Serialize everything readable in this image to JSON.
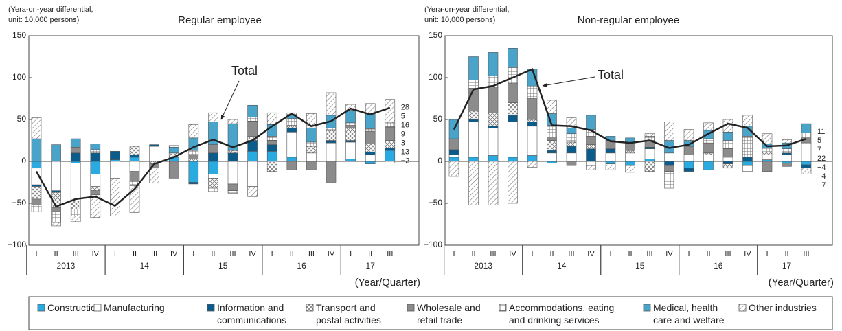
{
  "chart_data": [
    {
      "type": "bar",
      "stacked": true,
      "title": "Regular employee",
      "y_label": "(Yera-on-year differential,\nunit: 10,000 persons)",
      "x_label": "(Year/Quarter)",
      "categories": [
        "I",
        "II",
        "III",
        "IV",
        "I",
        "II",
        "III",
        "IV",
        "I",
        "II",
        "III",
        "IV",
        "I",
        "II",
        "III",
        "IV",
        "I",
        "II",
        "III"
      ],
      "years": [
        "2013",
        "14",
        "15",
        "16",
        "17"
      ],
      "ylim": [
        -100,
        150
      ],
      "yticks": [
        {
          "value": -100,
          "label": "−100"
        },
        {
          "value": -50,
          "label": "−50"
        },
        0,
        50,
        100,
        150
      ],
      "series": [
        {
          "name": "Construction",
          "color": "#29abe2",
          "values": [
            -8,
            0,
            -2,
            -15,
            2,
            5,
            0,
            5,
            -25,
            -15,
            0,
            12,
            12,
            5,
            0,
            0,
            3,
            -3,
            13
          ]
        },
        {
          "name": "Manufacturing",
          "color": "#ffffff",
          "values": [
            -20,
            -35,
            -45,
            -15,
            -20,
            -12,
            18,
            0,
            0,
            -5,
            -27,
            -30,
            0,
            30,
            10,
            22,
            20,
            8,
            -2
          ]
        },
        {
          "name": "Information and\ncommunications",
          "color": "#0b5c8a",
          "values": [
            -2,
            -2,
            10,
            10,
            10,
            3,
            2,
            0,
            -2,
            10,
            10,
            13,
            8,
            5,
            0,
            3,
            2,
            3,
            3
          ]
        },
        {
          "name": "Transport and\npostal activities",
          "color": "#ffffff",
          "pattern": "cross",
          "values": [
            -15,
            -18,
            -10,
            -5,
            0,
            10,
            -3,
            5,
            3,
            -12,
            3,
            5,
            -12,
            3,
            8,
            12,
            15,
            10,
            9
          ]
        },
        {
          "name": "Wholesale and\nretail trade",
          "color": "#8c8c8c",
          "values": [
            -7,
            -5,
            7,
            -5,
            0,
            -12,
            -5,
            -20,
            5,
            10,
            -8,
            18,
            5,
            -10,
            -10,
            -25,
            3,
            15,
            16
          ]
        },
        {
          "name": "Accommodations, eating\nand drinking services",
          "color": "#ffffff",
          "pattern": "grid",
          "values": [
            -8,
            -13,
            -8,
            4,
            0,
            -5,
            0,
            0,
            5,
            -4,
            -3,
            5,
            5,
            8,
            5,
            3,
            3,
            3,
            5
          ]
        },
        {
          "name": "Medical, health\ncare and welfare",
          "color": "#4aa3c9",
          "values": [
            27,
            20,
            10,
            7,
            0,
            0,
            0,
            7,
            15,
            27,
            32,
            14,
            14,
            5,
            17,
            15,
            15,
            18,
            0
          ]
        },
        {
          "name": "Other industries",
          "color": "#ffffff",
          "pattern": "diagonal",
          "values": [
            25,
            -4,
            -7,
            -27,
            -45,
            -32,
            -18,
            2,
            16,
            11,
            5,
            -12,
            14,
            2,
            17,
            27,
            7,
            12,
            28
          ]
        }
      ],
      "total": {
        "name": "Total",
        "color": "#222222",
        "values": [
          -12,
          -54,
          -45,
          -42,
          -53,
          -33,
          -3,
          5,
          17,
          26,
          17,
          25,
          42,
          57,
          42,
          48,
          63,
          56,
          64
        ]
      },
      "end_labels": [
        "28",
        "5",
        "16",
        "9",
        "3",
        "13",
        "−2"
      ]
    },
    {
      "type": "bar",
      "stacked": true,
      "title": "Non-regular employee",
      "y_label": "(Yera-on-year differential,\nunit: 10,000 persons)",
      "x_label": "(Year/Quarter)",
      "categories": [
        "I",
        "II",
        "III",
        "IV",
        "I",
        "II",
        "III",
        "IV",
        "I",
        "II",
        "III",
        "IV",
        "I",
        "II",
        "III",
        "IV",
        "I",
        "II",
        "III"
      ],
      "years": [
        "2013",
        "14",
        "15",
        "16",
        "17"
      ],
      "ylim": [
        -100,
        150
      ],
      "yticks": [
        {
          "value": -100,
          "label": "−100"
        },
        {
          "value": -50,
          "label": "−50"
        },
        0,
        50,
        100,
        150
      ],
      "series": [
        {
          "name": "Construction",
          "color": "#29abe2",
          "values": [
            5,
            5,
            7,
            5,
            7,
            -2,
            0,
            0,
            -3,
            -5,
            3,
            0,
            -8,
            -10,
            0,
            -5,
            2,
            -2,
            -4
          ]
        },
        {
          "name": "Manufacturing",
          "color": "#ffffff",
          "values": [
            3,
            42,
            33,
            42,
            35,
            10,
            10,
            -5,
            10,
            10,
            12,
            10,
            8,
            8,
            5,
            -7,
            6,
            8,
            22
          ]
        },
        {
          "name": "Information and\ncommunications",
          "color": "#0b5c8a",
          "values": [
            6,
            3,
            2,
            8,
            5,
            3,
            8,
            15,
            5,
            0,
            2,
            -5,
            -4,
            0,
            -3,
            5,
            0,
            2,
            -4
          ]
        },
        {
          "name": "Transport and\npostal activities",
          "color": "#ffffff",
          "pattern": "cross",
          "values": [
            0,
            10,
            16,
            15,
            3,
            12,
            5,
            5,
            0,
            3,
            -12,
            0,
            0,
            2,
            -5,
            0,
            3,
            0,
            0
          ]
        },
        {
          "name": "Wholesale and\nretail trade",
          "color": "#8c8c8c",
          "values": [
            13,
            27,
            30,
            23,
            25,
            4,
            -5,
            10,
            10,
            8,
            8,
            -7,
            10,
            12,
            10,
            0,
            -12,
            -4,
            7
          ]
        },
        {
          "name": "Accommodations, eating\nand drinking services",
          "color": "#ffffff",
          "pattern": "grid",
          "values": [
            0,
            10,
            14,
            19,
            15,
            14,
            10,
            8,
            0,
            0,
            5,
            -20,
            0,
            5,
            10,
            25,
            5,
            5,
            5
          ]
        },
        {
          "name": "Medical, health\ncare and welfare",
          "color": "#4aa3c9",
          "values": [
            23,
            28,
            28,
            23,
            20,
            14,
            7,
            17,
            5,
            7,
            0,
            15,
            7,
            10,
            10,
            12,
            5,
            7,
            11
          ]
        },
        {
          "name": "Other industries",
          "color": "#ffffff",
          "pattern": "diagonal",
          "values": [
            -18,
            -52,
            -52,
            -50,
            -7,
            16,
            12,
            -5,
            -7,
            -8,
            3,
            22,
            13,
            9,
            15,
            13,
            12,
            4,
            -7
          ]
        }
      ],
      "total": {
        "name": "Total",
        "color": "#222222",
        "values": [
          38,
          86,
          90,
          100,
          110,
          43,
          42,
          37,
          24,
          22,
          25,
          16,
          20,
          33,
          45,
          40,
          18,
          19,
          27
        ]
      },
      "end_labels": [
        "11",
        "5",
        "7",
        "22",
        "−4",
        "−4",
        "−7"
      ]
    }
  ]
}
